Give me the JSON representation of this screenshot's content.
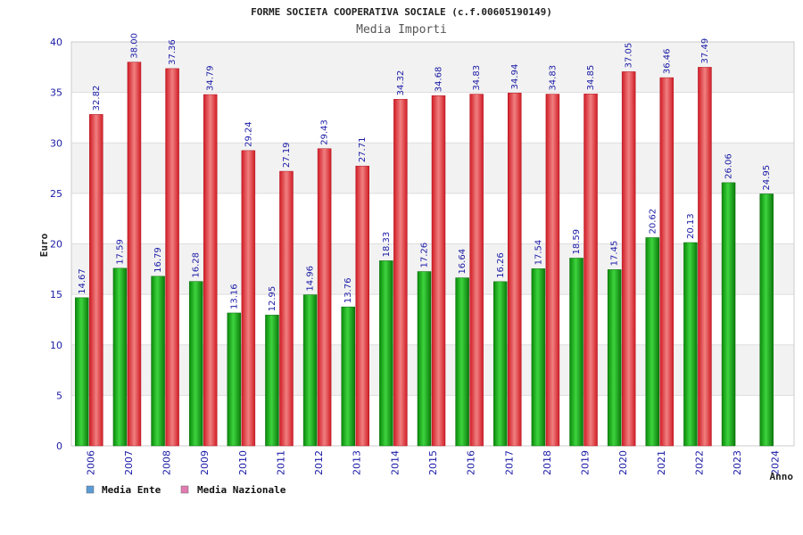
{
  "chart_data": {
    "type": "bar",
    "title": "FORME SOCIETA COOPERATIVA SOCIALE (c.f.00605190149)",
    "subtitle": "Media Importi",
    "xlabel": "Anno",
    "ylabel": "Euro",
    "ylim": [
      0,
      40
    ],
    "yticks": [
      0,
      5,
      10,
      15,
      20,
      25,
      30,
      35,
      40
    ],
    "grid": "horizontal-bands",
    "legend_position": "bottom-left",
    "categories": [
      "2006",
      "2007",
      "2008",
      "2009",
      "2010",
      "2011",
      "2012",
      "2013",
      "2014",
      "2015",
      "2016",
      "2017",
      "2018",
      "2019",
      "2020",
      "2021",
      "2022",
      "2023",
      "2024"
    ],
    "series": [
      {
        "name": "Media Ente",
        "color": "#22b422",
        "legend_color": "#5b9bd5",
        "values": [
          14.67,
          17.59,
          16.79,
          16.28,
          13.16,
          12.95,
          14.96,
          13.76,
          18.33,
          17.26,
          16.64,
          16.26,
          17.54,
          18.59,
          17.45,
          20.62,
          20.13,
          26.06,
          24.95
        ]
      },
      {
        "name": "Media Nazionale",
        "color": "#e8303a",
        "legend_color": "#e07bb0",
        "values": [
          32.82,
          38.0,
          37.36,
          34.79,
          29.24,
          27.19,
          29.43,
          27.71,
          34.32,
          34.68,
          34.83,
          34.94,
          34.83,
          34.85,
          37.05,
          36.46,
          37.49,
          null,
          null
        ]
      }
    ]
  }
}
